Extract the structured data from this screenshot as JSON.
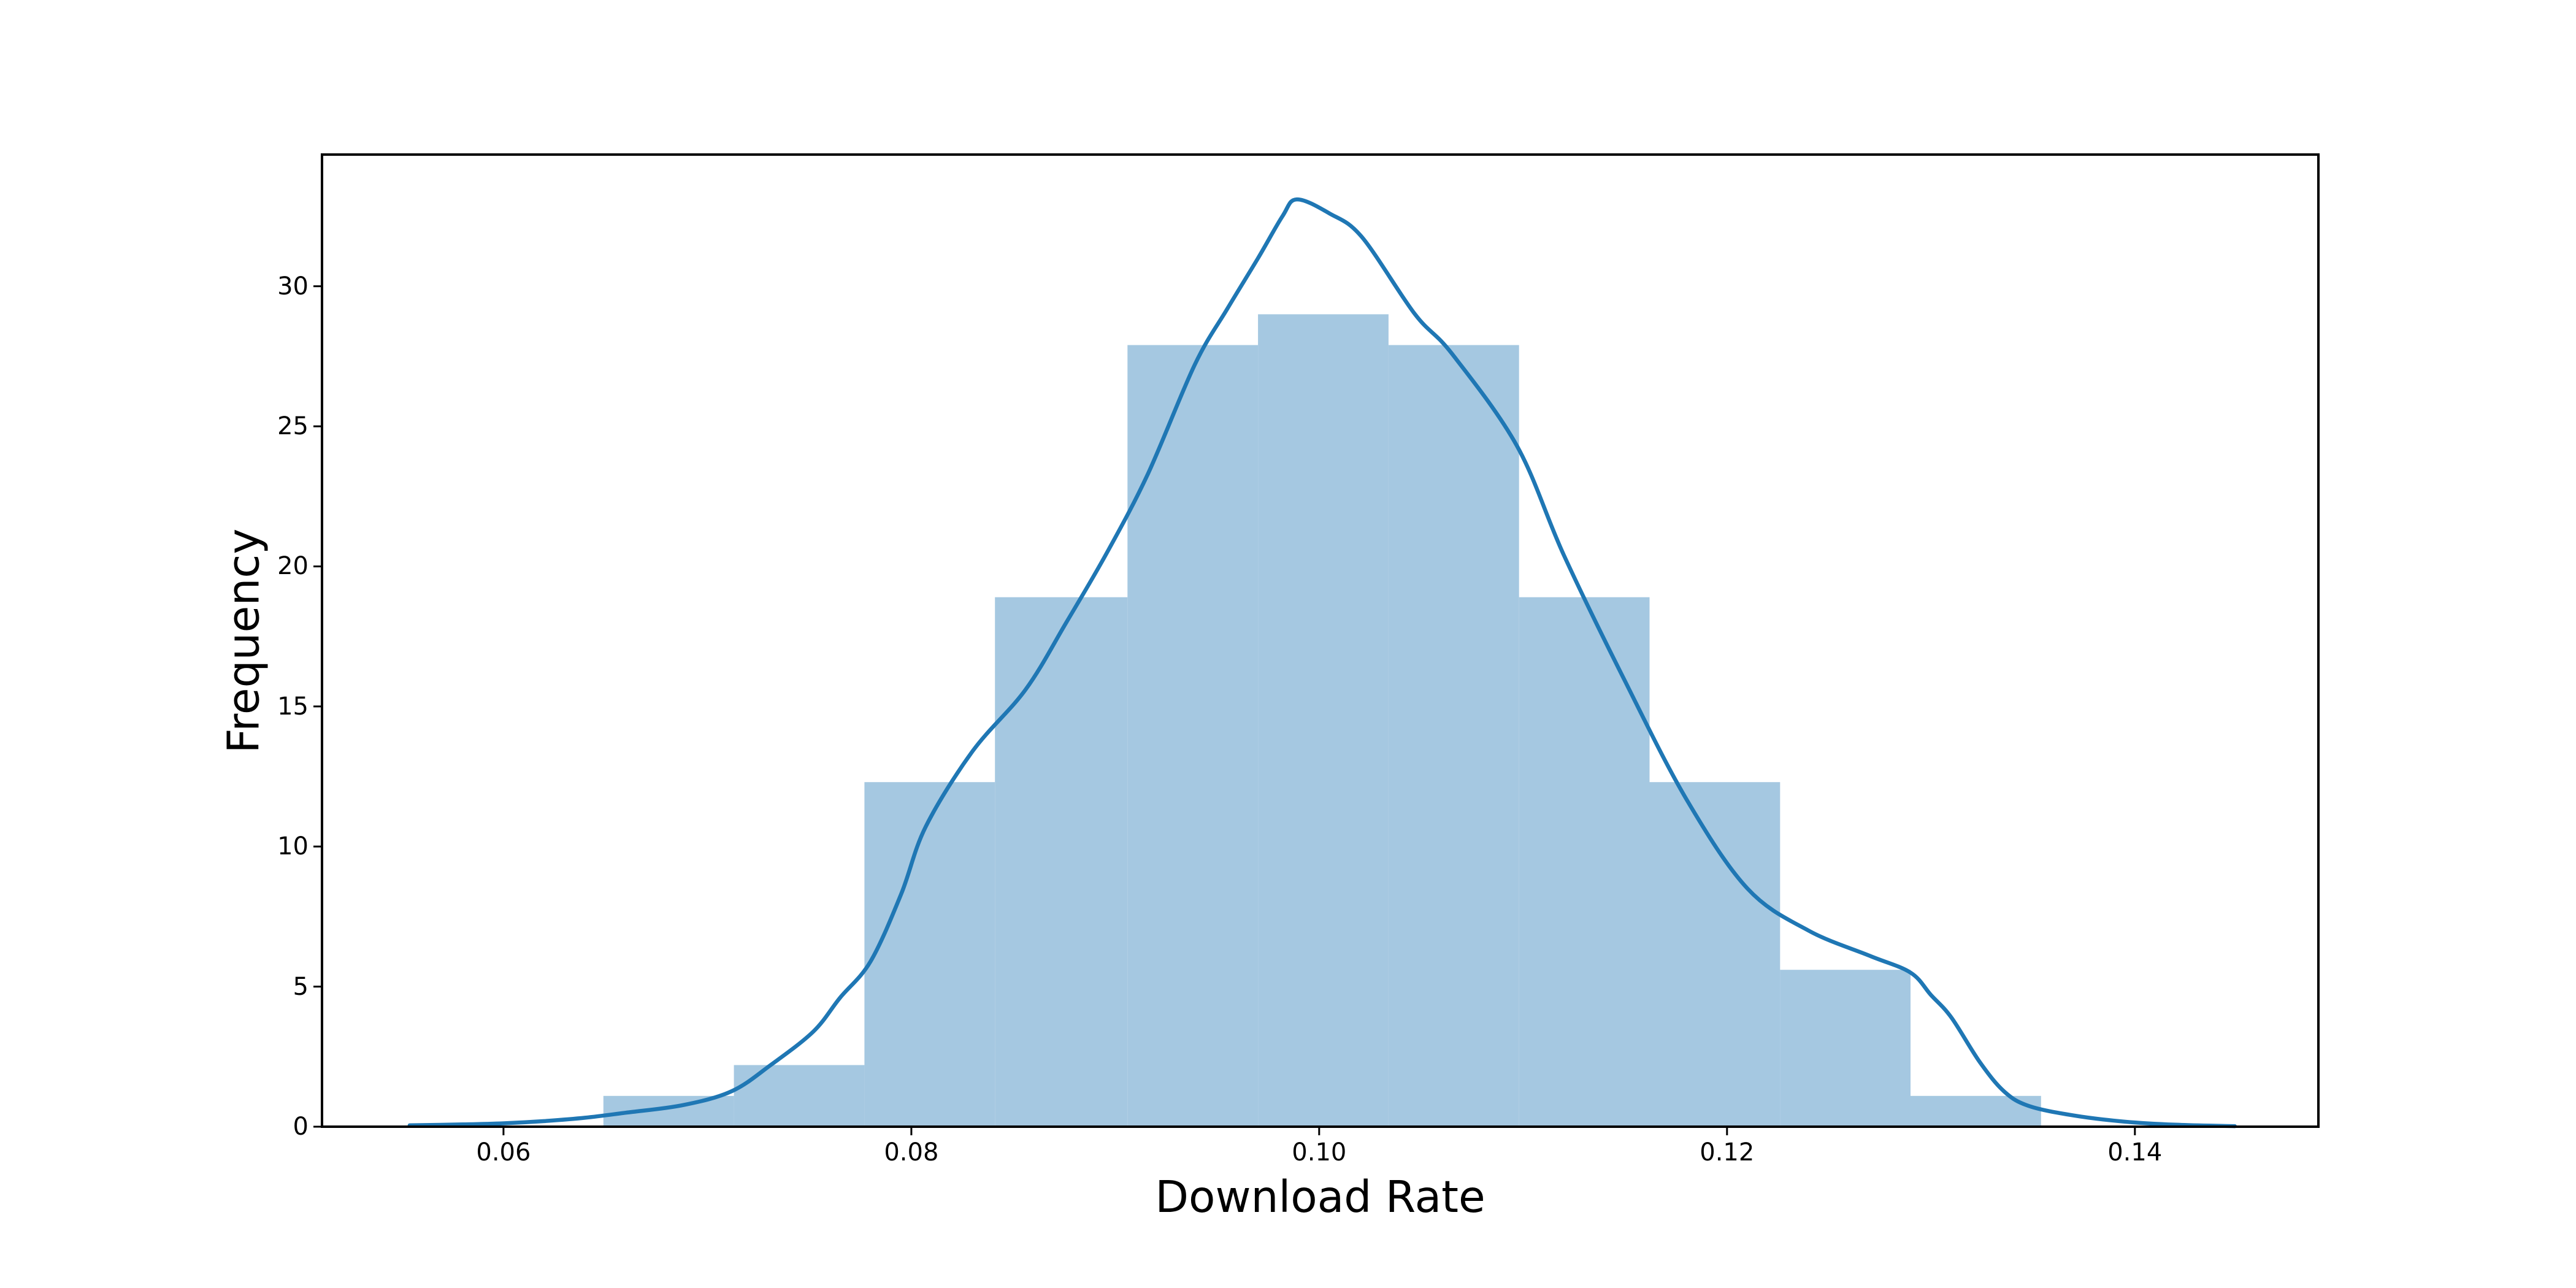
{
  "figure": {
    "background_color": "#ffffff"
  },
  "chart_data": {
    "type": "histogram",
    "title": "",
    "xlabel": "Download Rate",
    "ylabel": "Frequency",
    "xlim": [
      0.0511,
      0.149
    ],
    "ylim": [
      0,
      34.7
    ],
    "grid": false,
    "legend": null,
    "x_ticks": [
      0.06,
      0.08,
      0.1,
      0.12,
      0.14
    ],
    "x_tick_labels": [
      "0.06",
      "0.08",
      "0.10",
      "0.12",
      "0.14"
    ],
    "y_ticks": [
      0,
      5,
      10,
      15,
      20,
      25,
      30
    ],
    "y_tick_labels": [
      "0",
      "5",
      "10",
      "15",
      "20",
      "25",
      "30"
    ],
    "histogram": {
      "bin_edges": [
        0.0649,
        0.0713,
        0.0777,
        0.0841,
        0.0906,
        0.097,
        0.1034,
        0.1098,
        0.1162,
        0.1226,
        0.129,
        0.1354
      ],
      "frequencies": [
        1.1,
        2.2,
        12.3,
        18.9,
        27.9,
        29.0,
        27.9,
        18.9,
        12.3,
        5.6,
        1.1
      ],
      "bar_color": "#a5c8e1"
    },
    "kde": {
      "color": "#1f77b4",
      "line_width": 6.5,
      "points": [
        [
          0.0554,
          0.05
        ],
        [
          0.058,
          0.08
        ],
        [
          0.06,
          0.12
        ],
        [
          0.062,
          0.2
        ],
        [
          0.064,
          0.32
        ],
        [
          0.066,
          0.5
        ],
        [
          0.0688,
          0.77
        ],
        [
          0.0712,
          1.27
        ],
        [
          0.0731,
          2.2
        ],
        [
          0.0752,
          3.4
        ],
        [
          0.0765,
          4.6
        ],
        [
          0.078,
          5.9
        ],
        [
          0.0795,
          8.3
        ],
        [
          0.0807,
          10.7
        ],
        [
          0.083,
          13.4
        ],
        [
          0.0856,
          15.6
        ],
        [
          0.0876,
          18.0
        ],
        [
          0.0896,
          20.5
        ],
        [
          0.0916,
          23.3
        ],
        [
          0.0939,
          27.2
        ],
        [
          0.0955,
          29.2
        ],
        [
          0.097,
          31.0
        ],
        [
          0.0982,
          32.5
        ],
        [
          0.0989,
          33.1
        ],
        [
          0.1005,
          32.6
        ],
        [
          0.1021,
          31.75
        ],
        [
          0.1047,
          29.0
        ],
        [
          0.1065,
          27.6
        ],
        [
          0.1097,
          24.3
        ],
        [
          0.112,
          20.4
        ],
        [
          0.115,
          15.9
        ],
        [
          0.118,
          11.7
        ],
        [
          0.121,
          8.5
        ],
        [
          0.124,
          7.0
        ],
        [
          0.127,
          6.1
        ],
        [
          0.129,
          5.5
        ],
        [
          0.13,
          4.7
        ],
        [
          0.131,
          3.9
        ],
        [
          0.1324,
          2.3
        ],
        [
          0.1336,
          1.25
        ],
        [
          0.1348,
          0.74
        ],
        [
          0.137,
          0.4
        ],
        [
          0.1395,
          0.18
        ],
        [
          0.142,
          0.07
        ],
        [
          0.1449,
          0.02
        ]
      ]
    },
    "axes_style": {
      "spine_color": "#000000",
      "spine_width": 4,
      "tick_color": "#000000",
      "tick_width": 3,
      "tick_length": 14
    }
  }
}
